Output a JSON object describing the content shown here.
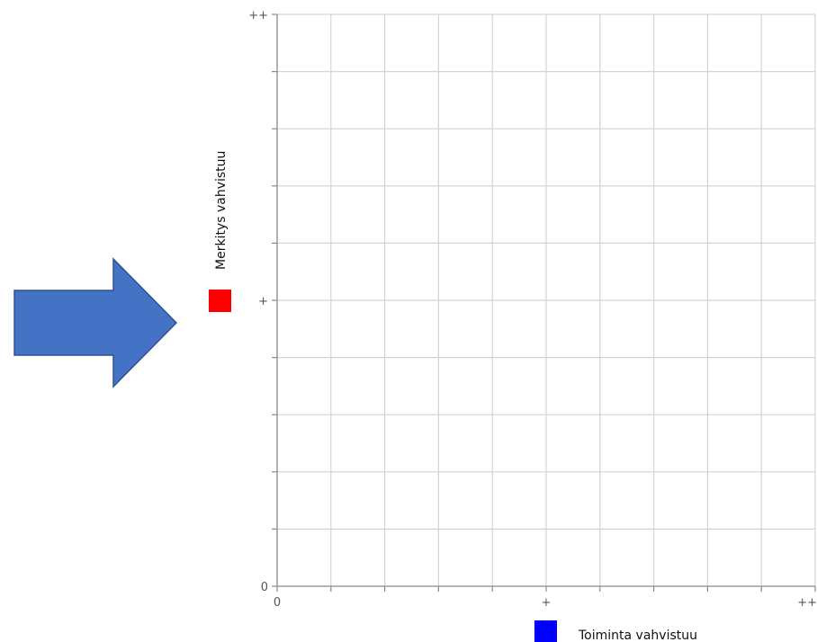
{
  "chart_data": {
    "type": "scatter",
    "xlabel": "Toiminta vahvistuu",
    "ylabel": "Merkitys vahvistuu",
    "xlim": [
      0,
      10
    ],
    "ylim": [
      0,
      10
    ],
    "x_tick_labels": [
      {
        "value": 0,
        "label": "0"
      },
      {
        "value": 5,
        "label": "+"
      },
      {
        "value": 10,
        "label": "++"
      }
    ],
    "y_tick_labels": [
      {
        "value": 0,
        "label": "0"
      },
      {
        "value": 5,
        "label": "+"
      },
      {
        "value": 10,
        "label": "++"
      }
    ],
    "grid": true,
    "gridlines": 10,
    "series": [],
    "markers": {
      "x_axis_color": "#0000ff",
      "y_axis_color": "#ff0000"
    },
    "arrow": {
      "direction": "right",
      "fill": "#4472c4",
      "stroke": "#2f528f"
    }
  }
}
